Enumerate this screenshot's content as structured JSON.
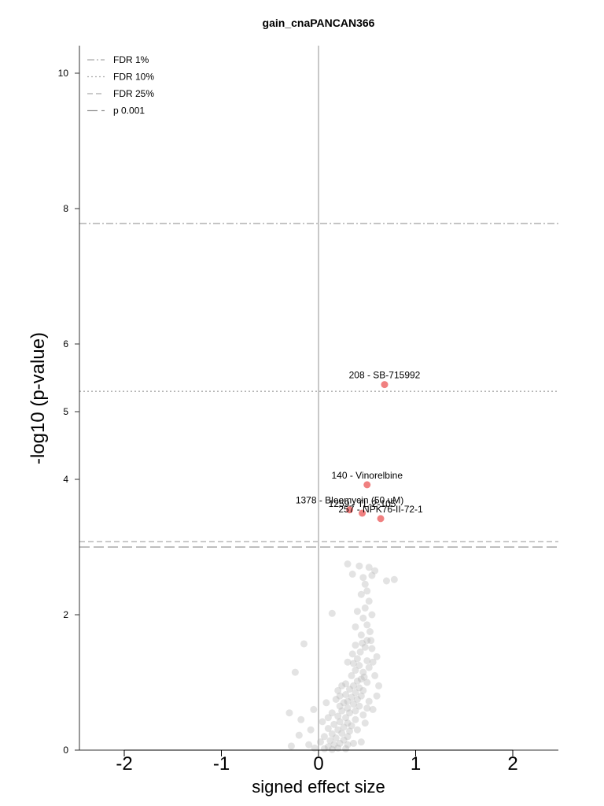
{
  "chart_data": {
    "type": "scatter",
    "title": "gain_cnaPANCAN366",
    "xlabel": "signed effect size",
    "ylabel": "-log10 (p-value)",
    "xlim": [
      -2.5,
      2.5
    ],
    "ylim": [
      0,
      10.5
    ],
    "x_ticks": [
      -2,
      -1,
      0,
      1,
      2
    ],
    "x_tick_labels": [
      "-2",
      "-1",
      "0",
      "1",
      "2"
    ],
    "y_ticks": [
      0,
      2,
      4,
      5,
      6,
      8,
      10
    ],
    "y_tick_labels": [
      "0",
      "2",
      "4",
      "5",
      "6",
      "8",
      "10"
    ],
    "zero_line_x": 0,
    "grid": false,
    "legend_position": "top-left",
    "thresholds": [
      {
        "name": "FDR 1%",
        "y": 7.78,
        "style": "dashdot",
        "color": "#aaaaaa"
      },
      {
        "name": "FDR 10%",
        "y": 5.3,
        "style": "dotted",
        "color": "#aaaaaa"
      },
      {
        "name": "FDR 25%",
        "y": 3.08,
        "style": "dashed",
        "color": "#aaaaaa"
      },
      {
        "name": "p 0.001",
        "y": 3.0,
        "style": "longdash",
        "color": "#999999"
      }
    ],
    "highlighted_color": "#f08080",
    "background_color": "#b0b0b0",
    "highlighted": [
      {
        "label": "208 - SB-715992",
        "x": 0.68,
        "y": 5.4
      },
      {
        "label": "140 - Vinorelbine",
        "x": 0.5,
        "y": 3.92
      },
      {
        "label": "1378 - Bleomycin (50 uM)",
        "x": 0.32,
        "y": 3.55
      },
      {
        "label": "1259 - TL-2-105",
        "x": 0.45,
        "y": 3.5
      },
      {
        "label": "257 - NPK76-II-72-1",
        "x": 0.64,
        "y": 3.42
      }
    ],
    "background_points": [
      [
        0.3,
        2.75
      ],
      [
        0.42,
        2.72
      ],
      [
        0.52,
        2.7
      ],
      [
        0.58,
        2.65
      ],
      [
        0.35,
        2.6
      ],
      [
        0.55,
        2.58
      ],
      [
        0.46,
        2.55
      ],
      [
        0.7,
        2.5
      ],
      [
        0.78,
        2.52
      ],
      [
        0.48,
        2.45
      ],
      [
        0.5,
        2.35
      ],
      [
        0.44,
        2.3
      ],
      [
        0.52,
        2.2
      ],
      [
        0.48,
        2.1
      ],
      [
        0.4,
        2.05
      ],
      [
        0.55,
        2.0
      ],
      [
        0.14,
        2.02
      ],
      [
        0.46,
        1.95
      ],
      [
        0.5,
        1.85
      ],
      [
        0.38,
        1.82
      ],
      [
        0.53,
        1.75
      ],
      [
        0.44,
        1.7
      ],
      [
        0.5,
        1.62
      ],
      [
        0.45,
        1.58
      ],
      [
        0.48,
        1.52
      ],
      [
        0.38,
        1.55
      ],
      [
        0.55,
        1.5
      ],
      [
        0.43,
        1.45
      ],
      [
        -0.15,
        1.57
      ],
      [
        0.35,
        1.42
      ],
      [
        0.4,
        1.35
      ],
      [
        0.5,
        1.32
      ],
      [
        0.6,
        1.38
      ],
      [
        0.3,
        1.3
      ],
      [
        0.42,
        1.25
      ],
      [
        0.52,
        1.22
      ],
      [
        0.38,
        1.18
      ],
      [
        0.46,
        1.15
      ],
      [
        0.34,
        1.1
      ],
      [
        0.44,
        1.05
      ],
      [
        0.4,
        1.02
      ],
      [
        0.5,
        1.0
      ],
      [
        0.28,
        0.98
      ],
      [
        0.36,
        0.95
      ],
      [
        0.24,
        0.95
      ],
      [
        -0.24,
        1.15
      ],
      [
        0.42,
        0.92
      ],
      [
        0.32,
        0.9
      ],
      [
        0.46,
        0.88
      ],
      [
        0.2,
        0.88
      ],
      [
        0.38,
        0.85
      ],
      [
        0.28,
        0.82
      ],
      [
        0.44,
        0.8
      ],
      [
        0.22,
        0.8
      ],
      [
        0.34,
        0.78
      ],
      [
        0.4,
        0.75
      ],
      [
        0.18,
        0.75
      ],
      [
        0.3,
        0.72
      ],
      [
        0.26,
        0.7
      ],
      [
        0.36,
        0.68
      ],
      [
        0.08,
        0.7
      ],
      [
        0.42,
        0.65
      ],
      [
        0.22,
        0.65
      ],
      [
        0.3,
        0.62
      ],
      [
        0.5,
        0.62
      ],
      [
        -0.05,
        0.6
      ],
      [
        0.38,
        0.58
      ],
      [
        0.24,
        0.58
      ],
      [
        0.14,
        0.55
      ],
      [
        0.32,
        0.55
      ],
      [
        0.46,
        0.52
      ],
      [
        0.2,
        0.5
      ],
      [
        0.28,
        0.48
      ],
      [
        0.1,
        0.48
      ],
      [
        -0.3,
        0.55
      ],
      [
        0.38,
        0.45
      ],
      [
        0.22,
        0.42
      ],
      [
        0.3,
        0.4
      ],
      [
        0.04,
        0.42
      ],
      [
        0.16,
        0.38
      ],
      [
        0.34,
        0.36
      ],
      [
        -0.18,
        0.45
      ],
      [
        0.26,
        0.34
      ],
      [
        0.1,
        0.32
      ],
      [
        0.2,
        0.3
      ],
      [
        0.32,
        0.28
      ],
      [
        -0.08,
        0.3
      ],
      [
        0.24,
        0.25
      ],
      [
        0.14,
        0.24
      ],
      [
        0.3,
        0.2
      ],
      [
        0.06,
        0.2
      ],
      [
        0.18,
        0.18
      ],
      [
        -0.2,
        0.22
      ],
      [
        0.26,
        0.15
      ],
      [
        0.12,
        0.14
      ],
      [
        0.22,
        0.1
      ],
      [
        0.02,
        0.12
      ],
      [
        0.16,
        0.08
      ],
      [
        0.3,
        0.08
      ],
      [
        0.1,
        0.05
      ],
      [
        -0.1,
        0.08
      ],
      [
        0.2,
        0.03
      ],
      [
        -0.28,
        0.06
      ],
      [
        0.06,
        0.02
      ],
      [
        0.28,
        0.02
      ],
      [
        -0.04,
        0.03
      ],
      [
        0.14,
        0.01
      ],
      [
        0.44,
        0.12
      ],
      [
        0.36,
        0.1
      ],
      [
        0.4,
        0.3
      ],
      [
        0.48,
        0.4
      ],
      [
        0.56,
        0.6
      ],
      [
        0.6,
        0.8
      ],
      [
        0.52,
        0.72
      ],
      [
        0.47,
        1.08
      ],
      [
        0.36,
        1.28
      ],
      [
        0.58,
        1.1
      ],
      [
        0.62,
        0.95
      ],
      [
        0.56,
        1.3
      ],
      [
        0.54,
        1.62
      ]
    ]
  }
}
